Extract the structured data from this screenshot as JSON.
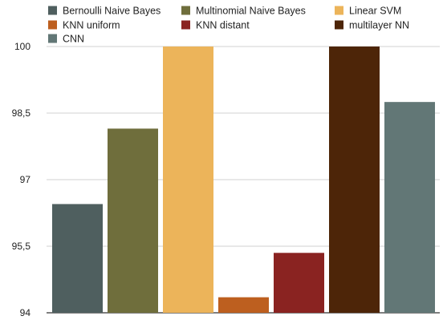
{
  "chart_data": {
    "type": "bar",
    "categories": [
      "Bernoulli Naive Bayes",
      "Multinomial Naive Bayes",
      "Linear SVM",
      "KNN uniform",
      "KNN distant",
      "multilayer NN",
      "CNN"
    ],
    "series": [
      {
        "values": [
          96.45,
          98.15,
          100,
          94.35,
          95.35,
          100,
          98.75
        ],
        "colors": [
          "#4f5f5f",
          "#6f6e3c",
          "#ecb45a",
          "#bd5f1f",
          "#8a2321",
          "#4d2508",
          "#627776"
        ]
      }
    ],
    "legend": [
      {
        "label": "Bernoulli Naive Bayes",
        "color": "#4f5f5f"
      },
      {
        "label": "Multinomial Naive Bayes",
        "color": "#6f6e3c"
      },
      {
        "label": "Linear SVM",
        "color": "#ecb45a"
      },
      {
        "label": "KNN uniform",
        "color": "#bd5f1f"
      },
      {
        "label": "KNN distant",
        "color": "#8a2321"
      },
      {
        "label": "multilayer NN",
        "color": "#4d2508"
      },
      {
        "label": "CNN",
        "color": "#627776"
      }
    ],
    "legend_position": "top",
    "ylim": [
      94,
      100
    ],
    "yticks": [
      94,
      95.5,
      97,
      98.5,
      100
    ],
    "ytick_labels": [
      "94",
      "95,5",
      "97",
      "98,5",
      "100"
    ],
    "grid": true,
    "title": "",
    "xlabel": "",
    "ylabel": ""
  }
}
